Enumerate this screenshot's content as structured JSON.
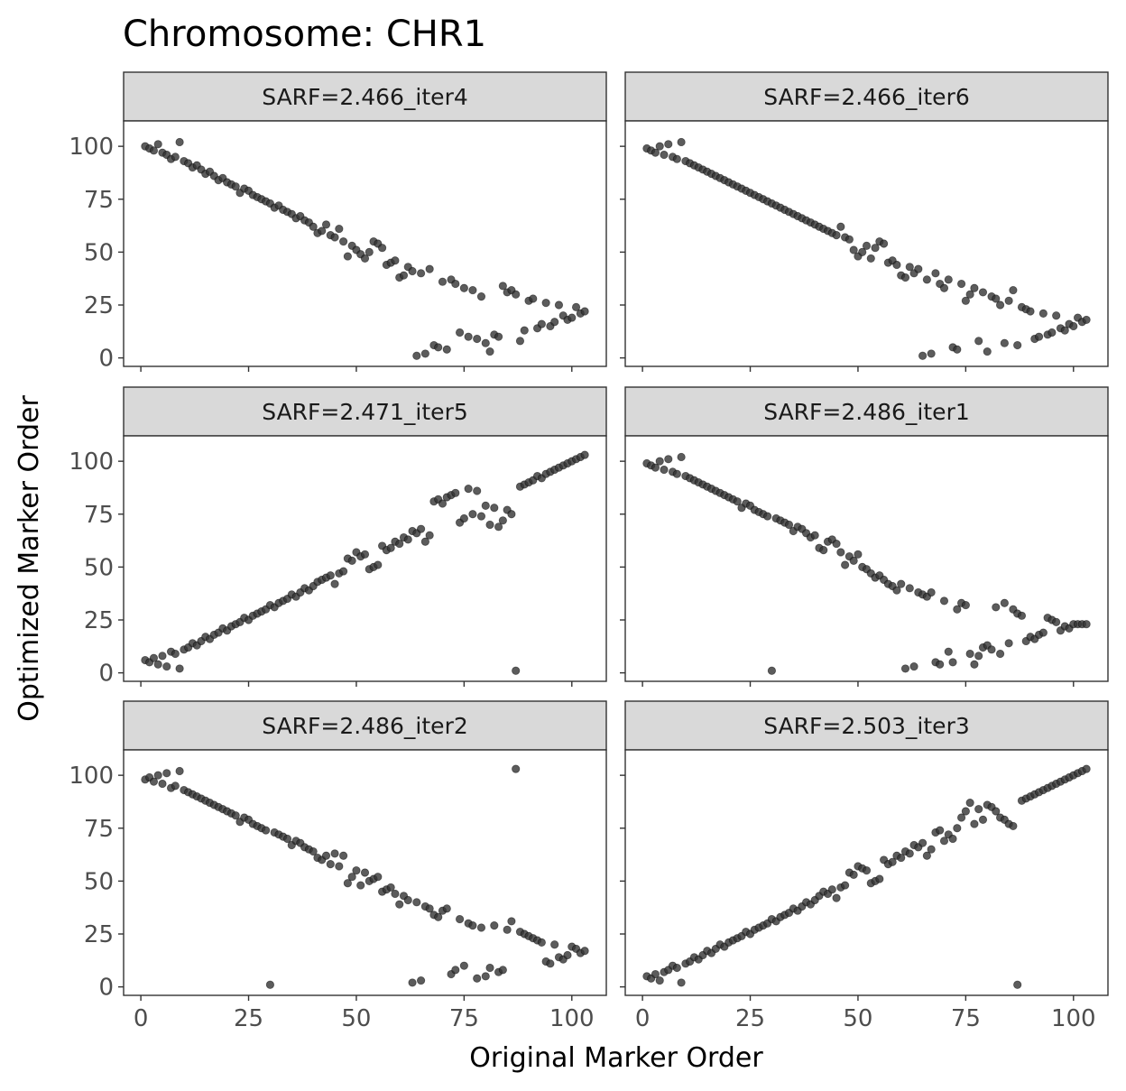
{
  "chart_data": {
    "type": "scatter",
    "title": "Chromosome: CHR1",
    "xlabel": "Original Marker Order",
    "ylabel": "Optimized Marker Order",
    "xlim": [
      -4,
      108
    ],
    "ylim": [
      -4,
      112
    ],
    "xticks": [
      0,
      25,
      50,
      75,
      100
    ],
    "yticks": [
      0,
      25,
      50,
      75,
      100
    ],
    "point_color": "#333333",
    "panels": [
      {
        "name": "SARF=2.466_iter4",
        "x": [
          1,
          2,
          3,
          4,
          5,
          6,
          7,
          8,
          9,
          10,
          11,
          12,
          13,
          14,
          15,
          16,
          17,
          18,
          19,
          20,
          21,
          22,
          23,
          24,
          25,
          26,
          27,
          28,
          29,
          30,
          31,
          32,
          33,
          34,
          35,
          36,
          37,
          38,
          39,
          40,
          41,
          42,
          43,
          44,
          45,
          46,
          47,
          48,
          49,
          50,
          51,
          52,
          53,
          54,
          55,
          56,
          57,
          58,
          59,
          60,
          61,
          62,
          63,
          64,
          65,
          66,
          67,
          68,
          69,
          70,
          71,
          72,
          73,
          74,
          75,
          76,
          77,
          78,
          79,
          80,
          81,
          82,
          83,
          84,
          85,
          86,
          87,
          88,
          89,
          90,
          91,
          92,
          93,
          94,
          95,
          96,
          97,
          98,
          99,
          100,
          101,
          102,
          103
        ],
        "y": [
          100,
          99,
          98,
          101,
          97,
          96,
          94,
          95,
          102,
          93,
          92,
          90,
          91,
          89,
          87,
          88,
          86,
          84,
          85,
          83,
          82,
          81,
          78,
          80,
          79,
          77,
          76,
          75,
          74,
          73,
          71,
          72,
          70,
          69,
          68,
          66,
          67,
          65,
          64,
          62,
          59,
          60,
          63,
          58,
          57,
          61,
          55,
          48,
          53,
          51,
          49,
          47,
          50,
          55,
          54,
          52,
          44,
          45,
          46,
          38,
          39,
          43,
          41,
          1,
          40,
          2,
          42,
          6,
          5,
          36,
          4,
          37,
          35,
          12,
          33,
          10,
          32,
          9,
          29,
          7,
          3,
          11,
          10,
          34,
          31,
          32,
          30,
          8,
          13,
          27,
          28,
          14,
          16,
          26,
          15,
          17,
          25,
          20,
          18,
          19,
          24,
          21,
          22
        ]
      },
      {
        "name": "SARF=2.466_iter6",
        "x": [
          1,
          2,
          3,
          4,
          5,
          6,
          7,
          8,
          9,
          10,
          11,
          12,
          13,
          14,
          15,
          16,
          17,
          18,
          19,
          20,
          21,
          22,
          23,
          24,
          25,
          26,
          27,
          28,
          29,
          30,
          31,
          32,
          33,
          34,
          35,
          36,
          37,
          38,
          39,
          40,
          41,
          42,
          43,
          44,
          45,
          46,
          47,
          48,
          49,
          50,
          51,
          52,
          53,
          54,
          55,
          56,
          57,
          58,
          59,
          60,
          61,
          62,
          63,
          64,
          65,
          66,
          67,
          68,
          69,
          70,
          71,
          72,
          73,
          74,
          75,
          76,
          77,
          78,
          79,
          80,
          81,
          82,
          83,
          84,
          85,
          86,
          87,
          88,
          89,
          90,
          91,
          92,
          93,
          94,
          95,
          96,
          97,
          98,
          99,
          100,
          101,
          102,
          103
        ],
        "y": [
          99,
          98,
          97,
          100,
          96,
          101,
          95,
          94,
          102,
          93,
          92,
          91,
          90,
          89,
          88,
          87,
          86,
          85,
          84,
          83,
          82,
          81,
          80,
          79,
          78,
          77,
          76,
          75,
          74,
          73,
          72,
          71,
          70,
          69,
          68,
          67,
          66,
          65,
          64,
          63,
          62,
          61,
          60,
          59,
          58,
          62,
          57,
          56,
          51,
          48,
          50,
          53,
          47,
          52,
          55,
          54,
          45,
          46,
          44,
          39,
          38,
          43,
          40,
          42,
          1,
          37,
          2,
          40,
          35,
          33,
          37,
          5,
          4,
          35,
          27,
          30,
          33,
          8,
          31,
          3,
          29,
          28,
          25,
          7,
          27,
          32,
          6,
          24,
          23,
          22,
          9,
          10,
          21,
          11,
          12,
          20,
          14,
          13,
          16,
          15,
          19,
          17,
          18
        ]
      },
      {
        "name": "SARF=2.471_iter5",
        "x": [
          1,
          2,
          3,
          4,
          5,
          6,
          7,
          8,
          9,
          10,
          11,
          12,
          13,
          14,
          15,
          16,
          17,
          18,
          19,
          20,
          21,
          22,
          23,
          24,
          25,
          26,
          27,
          28,
          29,
          30,
          31,
          32,
          33,
          34,
          35,
          36,
          37,
          38,
          39,
          40,
          41,
          42,
          43,
          44,
          45,
          46,
          47,
          48,
          49,
          50,
          51,
          52,
          53,
          54,
          55,
          56,
          57,
          58,
          59,
          60,
          61,
          62,
          63,
          64,
          65,
          66,
          67,
          68,
          69,
          70,
          71,
          72,
          73,
          74,
          75,
          76,
          77,
          78,
          79,
          80,
          81,
          82,
          83,
          84,
          85,
          86,
          87,
          88,
          89,
          90,
          91,
          92,
          93,
          94,
          95,
          96,
          97,
          98,
          99,
          100,
          101,
          102,
          103
        ],
        "y": [
          6,
          5,
          7,
          4,
          8,
          3,
          10,
          9,
          2,
          11,
          12,
          14,
          13,
          15,
          17,
          16,
          18,
          19,
          21,
          20,
          22,
          23,
          24,
          26,
          25,
          27,
          28,
          29,
          30,
          32,
          31,
          33,
          34,
          35,
          37,
          36,
          38,
          40,
          39,
          41,
          43,
          44,
          45,
          46,
          42,
          47,
          48,
          54,
          53,
          57,
          55,
          56,
          49,
          50,
          51,
          60,
          58,
          59,
          62,
          61,
          64,
          63,
          67,
          66,
          68,
          62,
          65,
          81,
          82,
          80,
          83,
          84,
          85,
          71,
          73,
          87,
          75,
          86,
          74,
          79,
          70,
          78,
          69,
          72,
          77,
          75,
          1,
          88,
          89,
          90,
          91,
          93,
          92,
          94,
          95,
          96,
          97,
          98,
          99,
          100,
          101,
          102,
          103
        ]
      },
      {
        "name": "SARF=2.486_iter1",
        "x": [
          1,
          2,
          3,
          4,
          5,
          6,
          7,
          8,
          9,
          10,
          11,
          12,
          13,
          14,
          15,
          16,
          17,
          18,
          19,
          20,
          21,
          22,
          23,
          24,
          25,
          26,
          27,
          28,
          29,
          30,
          31,
          32,
          33,
          34,
          35,
          36,
          37,
          38,
          39,
          40,
          41,
          42,
          43,
          44,
          45,
          46,
          47,
          48,
          49,
          50,
          51,
          52,
          53,
          54,
          55,
          56,
          57,
          58,
          59,
          60,
          61,
          62,
          63,
          64,
          65,
          66,
          67,
          68,
          69,
          70,
          71,
          72,
          73,
          74,
          75,
          76,
          77,
          78,
          79,
          80,
          81,
          82,
          83,
          84,
          85,
          86,
          87,
          88,
          89,
          90,
          91,
          92,
          93,
          94,
          95,
          96,
          97,
          98,
          99,
          100,
          101,
          102,
          103
        ],
        "y": [
          99,
          98,
          97,
          100,
          96,
          101,
          95,
          94,
          102,
          93,
          92,
          91,
          90,
          89,
          88,
          87,
          86,
          85,
          84,
          83,
          82,
          81,
          78,
          80,
          79,
          77,
          76,
          75,
          74,
          1,
          73,
          72,
          71,
          70,
          67,
          69,
          68,
          66,
          64,
          65,
          59,
          58,
          62,
          63,
          61,
          57,
          51,
          55,
          53,
          56,
          50,
          49,
          47,
          45,
          46,
          44,
          42,
          41,
          39,
          42,
          2,
          40,
          3,
          38,
          37,
          36,
          38,
          5,
          4,
          34,
          10,
          5,
          30,
          33,
          32,
          9,
          4,
          8,
          12,
          13,
          11,
          31,
          9,
          33,
          14,
          30,
          28,
          27,
          15,
          17,
          16,
          18,
          19,
          26,
          25,
          24,
          20,
          22,
          21,
          23,
          23,
          23,
          23
        ]
      },
      {
        "name": "SARF=2.486_iter2",
        "x": [
          1,
          2,
          3,
          4,
          5,
          6,
          7,
          8,
          9,
          10,
          11,
          12,
          13,
          14,
          15,
          16,
          17,
          18,
          19,
          20,
          21,
          22,
          23,
          24,
          25,
          26,
          27,
          28,
          29,
          30,
          31,
          32,
          33,
          34,
          35,
          36,
          37,
          38,
          39,
          40,
          41,
          42,
          43,
          44,
          45,
          46,
          47,
          48,
          49,
          50,
          51,
          52,
          53,
          54,
          55,
          56,
          57,
          58,
          59,
          60,
          61,
          62,
          63,
          64,
          65,
          66,
          67,
          68,
          69,
          70,
          71,
          72,
          73,
          74,
          75,
          76,
          77,
          78,
          79,
          80,
          81,
          82,
          83,
          84,
          85,
          86,
          87,
          88,
          89,
          90,
          91,
          92,
          93,
          94,
          95,
          96,
          97,
          98,
          99,
          100,
          101,
          102,
          103
        ],
        "y": [
          98,
          99,
          97,
          100,
          96,
          101,
          94,
          95,
          102,
          93,
          92,
          91,
          90,
          89,
          88,
          87,
          86,
          85,
          84,
          83,
          82,
          81,
          78,
          80,
          79,
          77,
          76,
          75,
          74,
          1,
          73,
          72,
          71,
          70,
          67,
          69,
          68,
          66,
          65,
          64,
          61,
          60,
          62,
          58,
          63,
          57,
          62,
          49,
          52,
          55,
          48,
          54,
          50,
          51,
          52,
          45,
          46,
          47,
          44,
          39,
          43,
          41,
          2,
          40,
          3,
          38,
          37,
          34,
          33,
          36,
          37,
          6,
          8,
          32,
          10,
          30,
          29,
          4,
          28,
          5,
          9,
          29,
          7,
          8,
          27,
          31,
          103,
          26,
          25,
          24,
          23,
          22,
          21,
          12,
          11,
          20,
          14,
          13,
          15,
          19,
          18,
          16,
          17
        ]
      },
      {
        "name": "SARF=2.503_iter3",
        "x": [
          1,
          2,
          3,
          4,
          5,
          6,
          7,
          8,
          9,
          10,
          11,
          12,
          13,
          14,
          15,
          16,
          17,
          18,
          19,
          20,
          21,
          22,
          23,
          24,
          25,
          26,
          27,
          28,
          29,
          30,
          31,
          32,
          33,
          34,
          35,
          36,
          37,
          38,
          39,
          40,
          41,
          42,
          43,
          44,
          45,
          46,
          47,
          48,
          49,
          50,
          51,
          52,
          53,
          54,
          55,
          56,
          57,
          58,
          59,
          60,
          61,
          62,
          63,
          64,
          65,
          66,
          67,
          68,
          69,
          70,
          71,
          72,
          73,
          74,
          75,
          76,
          77,
          78,
          79,
          80,
          81,
          82,
          83,
          84,
          85,
          86,
          87,
          88,
          89,
          90,
          91,
          92,
          93,
          94,
          95,
          96,
          97,
          98,
          99,
          100,
          101,
          102,
          103
        ],
        "y": [
          5,
          4,
          6,
          3,
          7,
          8,
          10,
          9,
          2,
          11,
          12,
          14,
          13,
          15,
          17,
          16,
          18,
          20,
          19,
          21,
          22,
          23,
          24,
          26,
          25,
          27,
          28,
          29,
          30,
          32,
          31,
          33,
          34,
          35,
          37,
          36,
          38,
          40,
          39,
          41,
          43,
          45,
          44,
          46,
          42,
          47,
          48,
          54,
          53,
          57,
          56,
          55,
          49,
          50,
          51,
          60,
          58,
          59,
          62,
          61,
          64,
          63,
          67,
          66,
          68,
          62,
          65,
          73,
          74,
          69,
          72,
          70,
          75,
          80,
          83,
          87,
          77,
          84,
          79,
          86,
          85,
          83,
          80,
          79,
          77,
          76,
          1,
          88,
          89,
          90,
          91,
          92,
          93,
          94,
          95,
          96,
          97,
          98,
          99,
          100,
          101,
          102,
          103
        ]
      }
    ]
  }
}
